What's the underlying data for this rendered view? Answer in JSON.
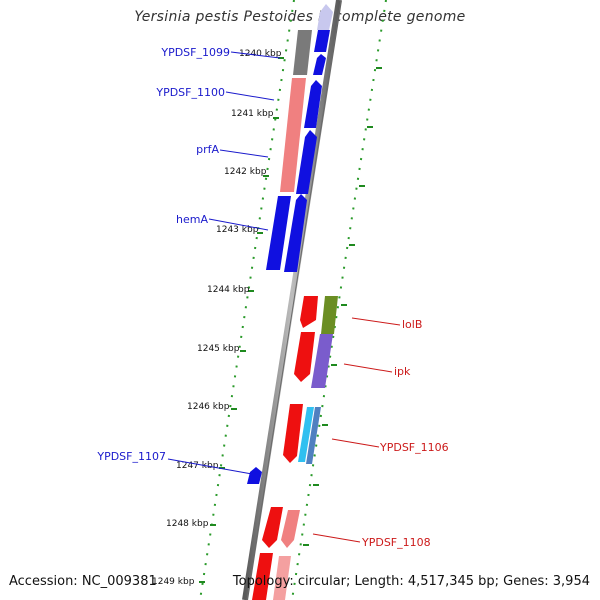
{
  "title": "Yersinia pestis Pestoides F, complete genome",
  "accession": "Accession: NC_009381",
  "topology": "Topology: circular; Length: 4,517,345 bp; Genes: 3,954",
  "colors": {
    "backbone": "#8c8c8c",
    "tick": "#1f8a1f",
    "label_blue": "#1a1acc",
    "label_red": "#cc1a1a"
  },
  "kbp_labels": [
    "1240 kbp",
    "1241 kbp",
    "1242 kbp",
    "1243 kbp",
    "1244 kbp",
    "1245 kbp",
    "1246 kbp",
    "1247 kbp",
    "1248 kbp",
    "1249 kbp"
  ],
  "gene_labels_left": [
    "YPDSF_1099",
    "YPDSF_1100",
    "prfA",
    "hemA",
    "YPDSF_1107"
  ],
  "gene_labels_right": [
    "lolB",
    "ipk",
    "YPDSF_1106",
    "YPDSF_1108"
  ]
}
